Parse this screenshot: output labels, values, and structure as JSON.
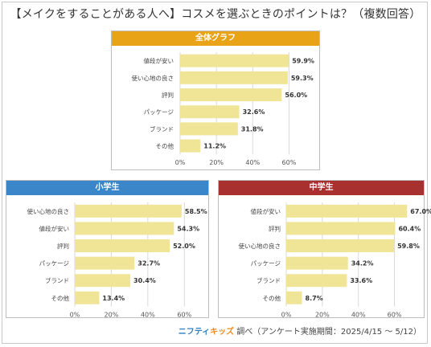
{
  "title": "【メイクをすることがある人へ】コスメを選ぶときのポイントは？（複数回答）",
  "footer": {
    "logo_part1": "ニフティ",
    "logo_part2": "キッズ",
    "text": "調べ（アンケート実施期間：2025/4/15 ～ 5/12）"
  },
  "colors": {
    "bar": "#f0e497",
    "overall_header": "#e8a317",
    "elementary_header": "#3a86c8",
    "junior_high_header": "#a8302f",
    "grid": "#d9d9d9"
  },
  "chart_data": [
    {
      "id": "overall",
      "type": "bar",
      "orientation": "horizontal",
      "title": "全体グラフ",
      "categories": [
        "値段が安い",
        "使い心地の良さ",
        "評判",
        "パッケージ",
        "ブランド",
        "その他"
      ],
      "values": [
        59.9,
        59.3,
        56.0,
        32.6,
        31.8,
        11.2
      ],
      "value_labels": [
        "59.9%",
        "59.3%",
        "56.0%",
        "32.6%",
        "31.8%",
        "11.2%"
      ],
      "xlim": [
        0,
        70
      ],
      "ticks": [
        0,
        20,
        40,
        60
      ],
      "tick_labels": [
        "0%",
        "20%",
        "40%",
        "60%"
      ],
      "grid": true
    },
    {
      "id": "elementary",
      "type": "bar",
      "orientation": "horizontal",
      "title": "小学生",
      "categories": [
        "使い心地の良さ",
        "値段が安い",
        "評判",
        "パッケージ",
        "ブランド",
        "その他"
      ],
      "values": [
        58.5,
        54.3,
        52.0,
        32.7,
        30.4,
        13.4
      ],
      "value_labels": [
        "58.5%",
        "54.3%",
        "52.0%",
        "32.7%",
        "30.4%",
        "13.4%"
      ],
      "xlim": [
        0,
        70
      ],
      "ticks": [
        0,
        20,
        40,
        60
      ],
      "tick_labels": [
        "0%",
        "20%",
        "40%",
        "60%"
      ],
      "grid": true
    },
    {
      "id": "junior_high",
      "type": "bar",
      "orientation": "horizontal",
      "title": "中学生",
      "categories": [
        "値段が安い",
        "評判",
        "使い心地の良さ",
        "パッケージ",
        "ブランド",
        "その他"
      ],
      "values": [
        67.0,
        60.4,
        59.8,
        34.2,
        33.6,
        8.7
      ],
      "value_labels": [
        "67.0%",
        "60.4%",
        "59.8%",
        "34.2%",
        "33.6%",
        "8.7%"
      ],
      "xlim": [
        0,
        70
      ],
      "ticks": [
        0,
        20,
        40,
        60
      ],
      "tick_labels": [
        "0%",
        "20%",
        "40%",
        "60%"
      ],
      "grid": true
    }
  ]
}
